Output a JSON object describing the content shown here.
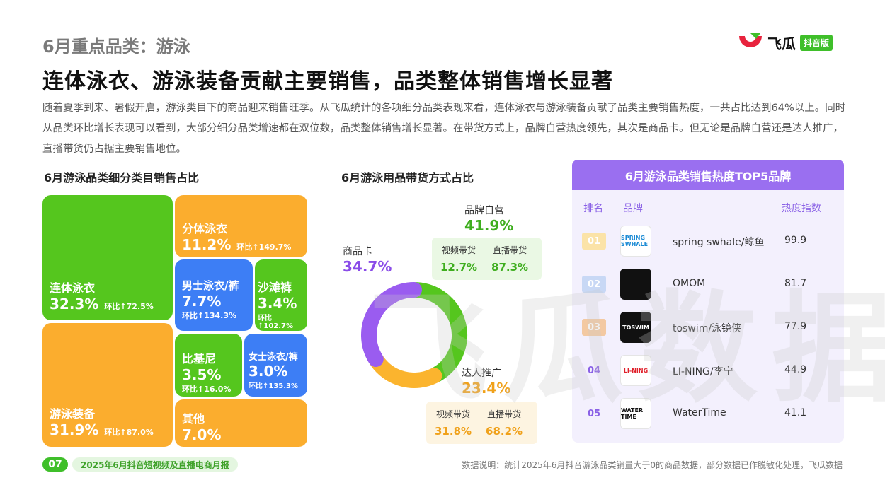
{
  "header": {
    "kicker": "6月重点品类：游泳",
    "headline": "连体泳衣、游泳装备贡献主要销售，品类整体销售增长显著",
    "intro": "随着夏季到来、暑假开启，游泳类目下的商品迎来销售旺季。从飞瓜统计的各项细分品类表现来看，连体泳衣与游泳装备贡献了品类主要销售热度，一共占比达到64%以上。同时从品类环比增长表现可以看到，大部分细分品类增速都在双位数，品类整体销售增长显著。在带货方式上，品牌自营热度领先，其次是商品卡。但无论是品牌自营还是达人推广，直播带货仍占据主要销售地位。"
  },
  "logo": {
    "name": "飞瓜",
    "tag": "抖音版"
  },
  "watermark": "飞瓜数据",
  "treemap": {
    "title": "6月游泳品类细分类目销售占比",
    "tiles": [
      {
        "name": "连体泳衣",
        "share": "32.3%",
        "growth": "环比↑72.5%",
        "color": "#55c61e"
      },
      {
        "name": "游泳装备",
        "share": "31.9%",
        "growth": "环比↑87.0%",
        "color": "#fbad2e"
      },
      {
        "name": "分体泳衣",
        "share": "11.2%",
        "growth": "环比↑149.7%",
        "color": "#fbad2e"
      },
      {
        "name": "男士泳衣/裤",
        "share": "7.7%",
        "growth": "环比↑134.3%",
        "color": "#3d7ef5"
      },
      {
        "name": "沙滩裤",
        "share": "3.4%",
        "growth": "环比↑102.7%",
        "color": "#55c61e"
      },
      {
        "name": "比基尼",
        "share": "3.5%",
        "growth": "环比↑16.0%",
        "color": "#55c61e"
      },
      {
        "name": "女士泳衣/裤",
        "share": "3.0%",
        "growth": "环比↑135.3%",
        "color": "#3d7ef5"
      },
      {
        "name": "其他",
        "share": "7.0%",
        "growth": "",
        "color": "#fbad2e"
      }
    ]
  },
  "donut": {
    "title": "6月游泳用品带货方式占比",
    "segments": [
      {
        "name": "品牌自营",
        "share": "41.9%",
        "color": "#55c61e",
        "sub": [
          {
            "name": "视频带货",
            "value": "12.7%"
          },
          {
            "name": "直播带货",
            "value": "87.3%"
          }
        ]
      },
      {
        "name": "达人推广",
        "share": "23.4%",
        "color": "#fbb42e",
        "sub": [
          {
            "name": "视频带货",
            "value": "31.8%"
          },
          {
            "name": "直播带货",
            "value": "68.2%"
          }
        ]
      },
      {
        "name": "商品卡",
        "share": "34.7%",
        "color": "#9a5cf0",
        "sub": []
      }
    ]
  },
  "ranking": {
    "title": "6月游泳品类销售热度TOP5品牌",
    "col_rank": "排名",
    "col_brand": "品牌",
    "col_heat": "热度指数",
    "rows": [
      {
        "rank": "01",
        "brand": "spring swhale/鲸鱼",
        "heat": "99.9",
        "logo_text": "SPRING SWHALE",
        "logo_bg": "#ffffff",
        "logo_fg": "#1a8ad4"
      },
      {
        "rank": "02",
        "brand": "OMOM",
        "heat": "81.7",
        "logo_text": "",
        "logo_bg": "#111111",
        "logo_fg": "#ffffff"
      },
      {
        "rank": "03",
        "brand": "toswim/泳镜侠",
        "heat": "77.9",
        "logo_text": "TOSWIM",
        "logo_bg": "#111111",
        "logo_fg": "#ffffff"
      },
      {
        "rank": "04",
        "brand": "LI-NING/李宁",
        "heat": "44.9",
        "logo_text": "LI-NING",
        "logo_bg": "#ffffff",
        "logo_fg": "#e0202a"
      },
      {
        "rank": "05",
        "brand": "WaterTime",
        "heat": "41.1",
        "logo_text": "WATER TIME",
        "logo_bg": "#ffffff",
        "logo_fg": "#111111"
      }
    ]
  },
  "chart_data": [
    {
      "type": "treemap",
      "title": "6月游泳品类细分类目销售占比",
      "categories": [
        "连体泳衣",
        "游泳装备",
        "分体泳衣",
        "男士泳衣/裤",
        "其他",
        "比基尼",
        "沙滩裤",
        "女士泳衣/裤"
      ],
      "values": [
        32.3,
        31.9,
        11.2,
        7.7,
        7.0,
        3.5,
        3.4,
        3.0
      ],
      "mom_growth": [
        72.5,
        87.0,
        149.7,
        134.3,
        null,
        16.0,
        102.7,
        135.3
      ]
    },
    {
      "type": "pie",
      "title": "6月游泳用品带货方式占比",
      "categories": [
        "品牌自营",
        "达人推广",
        "商品卡"
      ],
      "values": [
        41.9,
        23.4,
        34.7
      ],
      "breakdown": {
        "品牌自营": {
          "视频带货": 12.7,
          "直播带货": 87.3
        },
        "达人推广": {
          "视频带货": 31.8,
          "直播带货": 68.2
        }
      }
    },
    {
      "type": "table",
      "title": "6月游泳品类销售热度TOP5品牌",
      "columns": [
        "排名",
        "品牌",
        "热度指数"
      ],
      "rows": [
        [
          "01",
          "spring swhale/鲸鱼",
          99.9
        ],
        [
          "02",
          "OMOM",
          81.7
        ],
        [
          "03",
          "toswim/泳镜侠",
          77.9
        ],
        [
          "04",
          "LI-NING/李宁",
          44.9
        ],
        [
          "05",
          "WaterTime",
          41.1
        ]
      ]
    }
  ],
  "footer": {
    "page": "07",
    "report": "2025年6月抖音短视频及直播电商月报",
    "note": "数据说明：统计2025年6月抖音游泳品类销量大于0的商品数据，部分数据已作脱敏化处理，飞瓜数据"
  }
}
